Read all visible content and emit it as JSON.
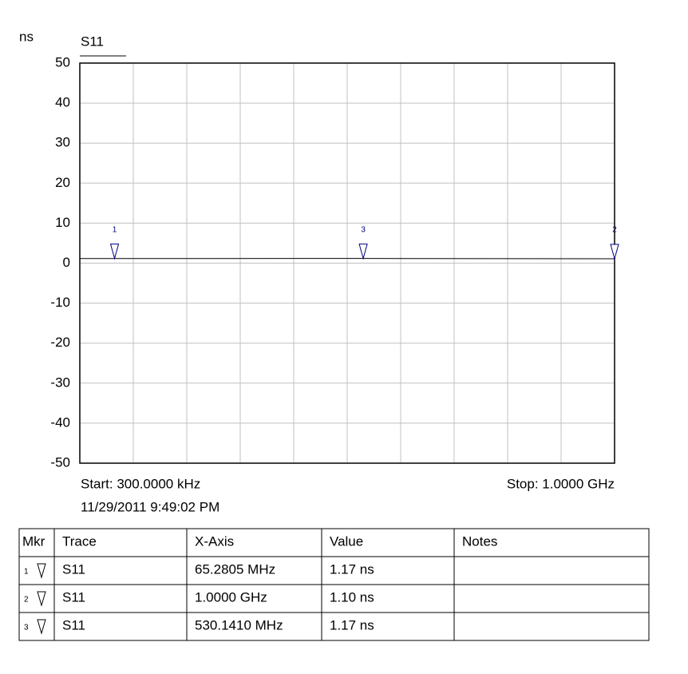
{
  "chart_data": {
    "type": "line",
    "y_unit": "ns",
    "title": "S11",
    "xlim": [
      300000,
      1000000000
    ],
    "ylim": [
      -50,
      50
    ],
    "yticks": [
      -50,
      -40,
      -30,
      -20,
      -10,
      0,
      10,
      20,
      30,
      40,
      50
    ],
    "grid": true,
    "start_label": "Start: 300.0000 kHz",
    "stop_label": "Stop: 1.0000 GHz",
    "timestamp": "11/29/2011 9:49:02 PM",
    "series": [
      {
        "name": "S11",
        "color": "#000000",
        "x": [
          300000,
          530141000,
          1000000000
        ],
        "values": [
          1.15,
          1.17,
          1.1
        ]
      }
    ],
    "markers": [
      {
        "label": "1",
        "x": 65280500,
        "value": 1.17
      },
      {
        "label": "2",
        "x": 1000000000,
        "value": 1.1
      },
      {
        "label": "3",
        "x": 530141000,
        "value": 1.17
      }
    ],
    "marker_color": "#000080"
  },
  "table": {
    "columns": [
      "Mkr",
      "Trace",
      "X-Axis",
      "Value",
      "Notes"
    ],
    "rows": [
      [
        "1",
        "S11",
        "65.2805 MHz",
        "1.17 ns"
      ],
      [
        "2",
        "S11",
        "1.0000 GHz",
        "1.10 ns"
      ],
      [
        "3",
        "S11",
        "530.1410 MHz",
        "1.17 ns"
      ]
    ]
  }
}
